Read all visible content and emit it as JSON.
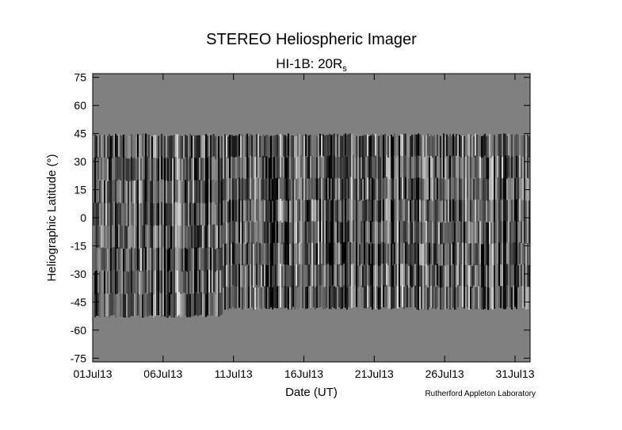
{
  "chart_data": {
    "type": "heatmap",
    "title": "STEREO Heliospheric Imager",
    "subtitle": "HI-1B: 20R",
    "subtitle_subscript": "s",
    "x_label": "Date (UT)",
    "y_label": "Heliographic Latitude (°)",
    "credit": "Rutherford Appleton Laboratory",
    "xlim": [
      1,
      32.07
    ],
    "xticks": [
      {
        "value": 1,
        "label": "01Jul13"
      },
      {
        "value": 6,
        "label": "06Jul13"
      },
      {
        "value": 11,
        "label": "11Jul13"
      },
      {
        "value": 16,
        "label": "16Jul13"
      },
      {
        "value": 21,
        "label": "21Jul13"
      },
      {
        "value": 26,
        "label": "26Jul13"
      },
      {
        "value": 31,
        "label": "31Jul13"
      }
    ],
    "ylim": [
      -77,
      77
    ],
    "yticks": [
      75,
      60,
      45,
      30,
      15,
      0,
      -15,
      -30,
      -45,
      -60,
      -75
    ],
    "background_color": "#808080"
  }
}
